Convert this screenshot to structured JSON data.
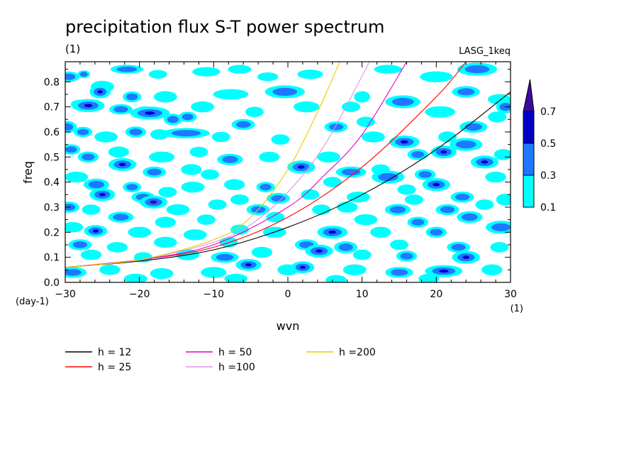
{
  "chart_data": {
    "type": "heatmap",
    "title": "precipitation flux S-T power spectrum",
    "subtitle": "(1)",
    "label_right": "LASG_1keq",
    "xlabel": "wvn",
    "ylabel": "freq",
    "x_unit": "(1)",
    "y_unit": "(day-1)",
    "xlim": [
      -30,
      30
    ],
    "ylim": [
      0,
      0.88
    ],
    "x_ticks": [
      -30,
      -20,
      -10,
      0,
      10,
      20,
      30
    ],
    "x_tick_labels": [
      "−30",
      "−20",
      "−10",
      "0",
      "10",
      "20",
      "30"
    ],
    "y_ticks": [
      0,
      0.1,
      0.2,
      0.3,
      0.4,
      0.5,
      0.6,
      0.7,
      0.8
    ],
    "y_tick_labels": [
      "0.0",
      "0.1",
      "0.2",
      "0.3",
      "0.4",
      "0.5",
      "0.6",
      "0.7",
      "0.8"
    ],
    "contour_levels": [
      0.1,
      0.3,
      0.5,
      0.7
    ],
    "colorbar_labels": [
      "0.1",
      "0.3",
      "0.5",
      "0.7"
    ],
    "colorbar_colors": [
      "#00ffff",
      "#1e78ff",
      "#0000c8",
      "#3c0aa0"
    ],
    "series": [
      {
        "name": "h = 12",
        "color": "#000000",
        "h": 12,
        "x": [
          -30,
          -20,
          -10,
          0,
          10,
          20,
          30
        ],
        "y": [
          0.06,
          0.085,
          0.13,
          0.22,
          0.35,
          0.53,
          0.76
        ]
      },
      {
        "name": "h = 25",
        "color": "#ff0000",
        "h": 25,
        "x": [
          -30,
          -20,
          -10,
          0,
          10,
          20,
          24
        ],
        "y": [
          0.06,
          0.09,
          0.14,
          0.26,
          0.46,
          0.74,
          0.88
        ]
      },
      {
        "name": "h = 50",
        "color": "#e600c8",
        "h": 50,
        "x": [
          -30,
          -20,
          -10,
          0,
          5,
          10,
          16
        ],
        "y": [
          0.06,
          0.09,
          0.15,
          0.3,
          0.43,
          0.59,
          0.88
        ]
      },
      {
        "name": "h =100",
        "color": "#dc96e6",
        "h": 100,
        "x": [
          -30,
          -20,
          -10,
          -5,
          0,
          5,
          11
        ],
        "y": [
          0.06,
          0.09,
          0.16,
          0.23,
          0.36,
          0.55,
          0.88
        ]
      },
      {
        "name": "h =200",
        "color": "#f0c800",
        "h": 200,
        "x": [
          -30,
          -20,
          -10,
          -5,
          0,
          4,
          7
        ],
        "y": [
          0.06,
          0.09,
          0.17,
          0.26,
          0.45,
          0.68,
          0.88
        ]
      }
    ],
    "blobs": [
      [
        -29.5,
        0.82,
        0.45,
        0.7,
        0.015,
        0.012
      ],
      [
        -27.5,
        0.83,
        0.35,
        0.35,
        0.01,
        0.008
      ],
      [
        -25,
        0.78,
        0.15,
        0.8,
        0.018,
        0.012
      ],
      [
        -21.7,
        0.85,
        0.3,
        1.2,
        0.012,
        0.01
      ],
      [
        -17.5,
        0.83,
        0.25,
        0.6,
        0.012,
        0.015
      ],
      [
        -11,
        0.84,
        0.15,
        1.0,
        0.013,
        0.01
      ],
      [
        -6.5,
        0.85,
        0.15,
        0.8,
        0.012,
        0.01
      ],
      [
        -2.7,
        0.82,
        0.2,
        0.7,
        0.012,
        0.01
      ],
      [
        3,
        0.83,
        0.15,
        0.9,
        0.013,
        0.01
      ],
      [
        13.5,
        0.85,
        0.25,
        1.0,
        0.012,
        0.01
      ],
      [
        20,
        0.82,
        0.15,
        1.2,
        0.016,
        0.012
      ],
      [
        25.5,
        0.85,
        0.45,
        1.5,
        0.02,
        0.015
      ],
      [
        -25.3,
        0.76,
        0.55,
        0.7,
        0.02,
        0.015
      ],
      [
        -21,
        0.74,
        0.3,
        0.6,
        0.016,
        0.013
      ],
      [
        -16.5,
        0.74,
        0.25,
        0.8,
        0.017,
        0.012
      ],
      [
        -7.7,
        0.75,
        0.25,
        1.3,
        0.015,
        0.013
      ],
      [
        -0.4,
        0.76,
        0.35,
        1.5,
        0.02,
        0.012
      ],
      [
        10,
        0.74,
        0.25,
        0.5,
        0.017,
        0.012
      ],
      [
        15.5,
        0.72,
        0.35,
        1.3,
        0.02,
        0.013
      ],
      [
        24,
        0.76,
        0.4,
        1.0,
        0.017,
        0.013
      ],
      [
        28.5,
        0.73,
        0.25,
        0.8,
        0.015,
        0.012
      ],
      [
        -28,
        0.71,
        0.3,
        0.6,
        0.013,
        0.012
      ],
      [
        -26.9,
        0.705,
        0.62,
        1.2,
        0.02,
        0.016
      ],
      [
        -22.5,
        0.69,
        0.3,
        0.8,
        0.015,
        0.012
      ],
      [
        -19.3,
        0.68,
        0.28,
        0.7,
        0.016,
        0.013
      ],
      [
        -11.5,
        0.7,
        0.25,
        0.8,
        0.016,
        0.01
      ],
      [
        -4.5,
        0.68,
        0.2,
        0.6,
        0.015,
        0.012
      ],
      [
        2.5,
        0.7,
        0.25,
        0.9,
        0.016,
        0.012
      ],
      [
        8.5,
        0.7,
        0.2,
        0.6,
        0.015,
        0.012
      ],
      [
        20.5,
        0.68,
        0.25,
        1.1,
        0.017,
        0.013
      ],
      [
        29.3,
        0.7,
        0.3,
        0.6,
        0.02,
        0.014
      ],
      [
        -18.6,
        0.675,
        0.65,
        1.5,
        0.02,
        0.015
      ],
      [
        -15.5,
        0.65,
        0.4,
        0.6,
        0.017,
        0.014
      ],
      [
        -13.5,
        0.66,
        0.3,
        0.6,
        0.015,
        0.012
      ],
      [
        -6,
        0.63,
        0.3,
        0.8,
        0.016,
        0.012
      ],
      [
        6.5,
        0.62,
        0.3,
        0.8,
        0.016,
        0.012
      ],
      [
        10.5,
        0.64,
        0.25,
        0.6,
        0.015,
        0.012
      ],
      [
        25,
        0.62,
        0.35,
        1.0,
        0.018,
        0.013
      ],
      [
        28.2,
        0.66,
        0.25,
        0.6,
        0.016,
        0.012
      ],
      [
        -29.7,
        0.62,
        0.35,
        0.6,
        0.018,
        0.015
      ],
      [
        -27.6,
        0.6,
        0.3,
        0.6,
        0.015,
        0.013
      ],
      [
        -24.5,
        0.58,
        0.25,
        0.8,
        0.016,
        0.012
      ],
      [
        -20.5,
        0.6,
        0.3,
        0.7,
        0.016,
        0.013
      ],
      [
        -17.3,
        0.59,
        0.2,
        0.6,
        0.015,
        0.012
      ],
      [
        -13.7,
        0.595,
        0.3,
        1.8,
        0.015,
        0.012
      ],
      [
        -9,
        0.58,
        0.25,
        0.6,
        0.015,
        0.012
      ],
      [
        -1,
        0.57,
        0.2,
        0.6,
        0.015,
        0.012
      ],
      [
        11.5,
        0.58,
        0.25,
        0.8,
        0.016,
        0.012
      ],
      [
        15.7,
        0.56,
        0.6,
        1.1,
        0.02,
        0.015
      ],
      [
        21.5,
        0.58,
        0.25,
        0.6,
        0.016,
        0.012
      ],
      [
        24,
        0.55,
        0.4,
        1.2,
        0.02,
        0.015
      ],
      [
        -29.2,
        0.53,
        0.3,
        0.6,
        0.015,
        0.013
      ],
      [
        -26.9,
        0.5,
        0.35,
        0.7,
        0.016,
        0.015
      ],
      [
        -22.8,
        0.52,
        0.25,
        0.7,
        0.016,
        0.012
      ],
      [
        -17,
        0.5,
        0.25,
        0.9,
        0.016,
        0.012
      ],
      [
        -12,
        0.52,
        0.2,
        0.6,
        0.015,
        0.012
      ],
      [
        -7.8,
        0.49,
        0.3,
        0.9,
        0.017,
        0.013
      ],
      [
        -2.5,
        0.5,
        0.2,
        0.7,
        0.015,
        0.012
      ],
      [
        5.5,
        0.5,
        0.25,
        0.8,
        0.016,
        0.012
      ],
      [
        17.5,
        0.51,
        0.3,
        0.7,
        0.016,
        0.012
      ],
      [
        21,
        0.52,
        0.6,
        0.9,
        0.02,
        0.015
      ],
      [
        26.5,
        0.48,
        0.5,
        1.0,
        0.02,
        0.015
      ],
      [
        29,
        0.51,
        0.25,
        0.6,
        0.016,
        0.012
      ],
      [
        -22.3,
        0.47,
        0.55,
        1.0,
        0.02,
        0.016
      ],
      [
        -18,
        0.44,
        0.3,
        0.8,
        0.016,
        0.013
      ],
      [
        -13,
        0.45,
        0.25,
        0.7,
        0.016,
        0.012
      ],
      [
        -10.5,
        0.43,
        0.2,
        0.6,
        0.015,
        0.012
      ],
      [
        1.8,
        0.46,
        0.65,
        1.0,
        0.02,
        0.015
      ],
      [
        8.5,
        0.44,
        0.3,
        1.1,
        0.016,
        0.013
      ],
      [
        12.5,
        0.45,
        0.2,
        0.6,
        0.015,
        0.012
      ],
      [
        13.5,
        0.42,
        0.45,
        1.2,
        0.02,
        0.014
      ],
      [
        18.5,
        0.43,
        0.3,
        0.7,
        0.016,
        0.012
      ],
      [
        -28.5,
        0.42,
        0.25,
        0.8,
        0.016,
        0.013
      ],
      [
        -25.8,
        0.39,
        0.45,
        0.9,
        0.018,
        0.015
      ],
      [
        -21,
        0.38,
        0.3,
        0.6,
        0.015,
        0.012
      ],
      [
        -12.8,
        0.38,
        0.25,
        0.8,
        0.016,
        0.012
      ],
      [
        -7.2,
        0.39,
        0.25,
        0.7,
        0.016,
        0.012
      ],
      [
        -3,
        0.38,
        0.3,
        0.6,
        0.015,
        0.013
      ],
      [
        6,
        0.4,
        0.2,
        0.6,
        0.015,
        0.012
      ],
      [
        16,
        0.37,
        0.25,
        0.6,
        0.015,
        0.012
      ],
      [
        20,
        0.39,
        0.5,
        1.0,
        0.02,
        0.014
      ],
      [
        28,
        0.42,
        0.25,
        0.7,
        0.016,
        0.012
      ],
      [
        -25,
        0.35,
        0.6,
        0.9,
        0.02,
        0.016
      ],
      [
        -19.5,
        0.34,
        0.3,
        0.8,
        0.016,
        0.013
      ],
      [
        -16.2,
        0.36,
        0.25,
        0.6,
        0.015,
        0.012
      ],
      [
        -6.5,
        0.33,
        0.2,
        0.6,
        0.015,
        0.012
      ],
      [
        -1.3,
        0.335,
        0.3,
        0.8,
        0.016,
        0.012
      ],
      [
        3,
        0.35,
        0.25,
        0.6,
        0.015,
        0.012
      ],
      [
        9.5,
        0.34,
        0.25,
        0.8,
        0.016,
        0.012
      ],
      [
        17,
        0.33,
        0.25,
        0.6,
        0.015,
        0.012
      ],
      [
        23.5,
        0.34,
        0.3,
        0.8,
        0.016,
        0.013
      ],
      [
        29.3,
        0.33,
        0.25,
        0.6,
        0.018,
        0.013
      ],
      [
        -29.5,
        0.3,
        0.35,
        0.7,
        0.016,
        0.015
      ],
      [
        -26.5,
        0.29,
        0.25,
        0.6,
        0.015,
        0.012
      ],
      [
        -18.1,
        0.32,
        0.72,
        1.0,
        0.02,
        0.016
      ],
      [
        -14.8,
        0.29,
        0.25,
        0.8,
        0.016,
        0.012
      ],
      [
        -9.5,
        0.31,
        0.25,
        0.6,
        0.015,
        0.012
      ],
      [
        -4,
        0.29,
        0.3,
        0.8,
        0.016,
        0.013
      ],
      [
        4.5,
        0.29,
        0.25,
        0.6,
        0.015,
        0.012
      ],
      [
        8,
        0.3,
        0.25,
        0.7,
        0.016,
        0.012
      ],
      [
        14.8,
        0.29,
        0.3,
        0.9,
        0.017,
        0.013
      ],
      [
        21.5,
        0.29,
        0.3,
        0.8,
        0.016,
        0.013
      ],
      [
        26.5,
        0.31,
        0.25,
        0.6,
        0.015,
        0.012
      ],
      [
        -22.5,
        0.26,
        0.3,
        0.9,
        0.016,
        0.013
      ],
      [
        -16.5,
        0.24,
        0.25,
        0.7,
        0.016,
        0.012
      ],
      [
        -11,
        0.25,
        0.2,
        0.6,
        0.015,
        0.012
      ],
      [
        -1.7,
        0.26,
        0.25,
        0.6,
        0.015,
        0.012
      ],
      [
        10.5,
        0.25,
        0.25,
        0.8,
        0.016,
        0.012
      ],
      [
        17.5,
        0.24,
        0.3,
        0.7,
        0.016,
        0.012
      ],
      [
        24.5,
        0.26,
        0.35,
        0.9,
        0.018,
        0.013
      ],
      [
        28.7,
        0.22,
        0.45,
        1.1,
        0.02,
        0.015
      ],
      [
        -29,
        0.22,
        0.25,
        0.7,
        0.015,
        0.012
      ],
      [
        -25.9,
        0.205,
        0.58,
        0.8,
        0.018,
        0.015
      ],
      [
        -20,
        0.2,
        0.25,
        0.8,
        0.016,
        0.012
      ],
      [
        -12.5,
        0.19,
        0.25,
        0.8,
        0.016,
        0.012
      ],
      [
        -6.5,
        0.21,
        0.2,
        0.6,
        0.015,
        0.012
      ],
      [
        -1.8,
        0.2,
        0.25,
        0.8,
        0.016,
        0.012
      ],
      [
        6,
        0.2,
        0.65,
        1.1,
        0.02,
        0.015
      ],
      [
        12.5,
        0.2,
        0.25,
        0.7,
        0.016,
        0.012
      ],
      [
        20,
        0.2,
        0.3,
        0.7,
        0.016,
        0.013
      ],
      [
        -28,
        0.15,
        0.3,
        0.8,
        0.016,
        0.013
      ],
      [
        -23,
        0.14,
        0.25,
        0.7,
        0.015,
        0.012
      ],
      [
        -16.5,
        0.16,
        0.25,
        0.8,
        0.016,
        0.012
      ],
      [
        -8,
        0.16,
        0.25,
        0.6,
        0.015,
        0.012
      ],
      [
        2.5,
        0.15,
        0.3,
        0.8,
        0.016,
        0.013
      ],
      [
        7.8,
        0.14,
        0.45,
        0.8,
        0.018,
        0.013
      ],
      [
        15,
        0.15,
        0.25,
        0.6,
        0.015,
        0.012
      ],
      [
        23,
        0.14,
        0.3,
        0.8,
        0.016,
        0.012
      ],
      [
        28.5,
        0.14,
        0.25,
        0.6,
        0.015,
        0.012
      ],
      [
        -26.5,
        0.11,
        0.25,
        0.7,
        0.015,
        0.012
      ],
      [
        -19.5,
        0.1,
        0.2,
        0.6,
        0.015,
        0.012
      ],
      [
        -13.5,
        0.11,
        0.25,
        0.8,
        0.016,
        0.012
      ],
      [
        -8.5,
        0.1,
        0.3,
        1.0,
        0.016,
        0.012
      ],
      [
        -3.5,
        0.12,
        0.25,
        0.7,
        0.016,
        0.012
      ],
      [
        4.2,
        0.125,
        0.65,
        1.0,
        0.02,
        0.015
      ],
      [
        10,
        0.11,
        0.25,
        0.6,
        0.015,
        0.012
      ],
      [
        16,
        0.105,
        0.3,
        0.7,
        0.016,
        0.012
      ],
      [
        24,
        0.1,
        0.5,
        1.0,
        0.02,
        0.014
      ],
      [
        -29,
        0.04,
        0.3,
        1.0,
        0.016,
        0.012
      ],
      [
        -24,
        0.05,
        0.25,
        0.7,
        0.015,
        0.012
      ],
      [
        -17,
        0.035,
        0.25,
        0.8,
        0.016,
        0.012
      ],
      [
        -10,
        0.04,
        0.25,
        0.9,
        0.016,
        0.012
      ],
      [
        -5.3,
        0.07,
        0.6,
        0.9,
        0.018,
        0.014
      ],
      [
        0,
        0.05,
        0.25,
        0.7,
        0.016,
        0.012
      ],
      [
        2,
        0.06,
        0.5,
        0.8,
        0.018,
        0.013
      ],
      [
        9,
        0.05,
        0.25,
        0.8,
        0.016,
        0.012
      ],
      [
        15,
        0.04,
        0.3,
        1.0,
        0.016,
        0.012
      ],
      [
        21,
        0.045,
        0.5,
        1.4,
        0.018,
        0.012
      ],
      [
        27.5,
        0.05,
        0.25,
        0.7,
        0.016,
        0.012
      ],
      [
        -20.5,
        0.015,
        0.25,
        0.8,
        0.014,
        0.01
      ],
      [
        -7,
        0.015,
        0.25,
        0.8,
        0.014,
        0.01
      ],
      [
        6.5,
        0.01,
        0.25,
        0.7,
        0.014,
        0.01
      ],
      [
        19,
        0.015,
        0.25,
        0.7,
        0.014,
        0.01
      ]
    ]
  }
}
